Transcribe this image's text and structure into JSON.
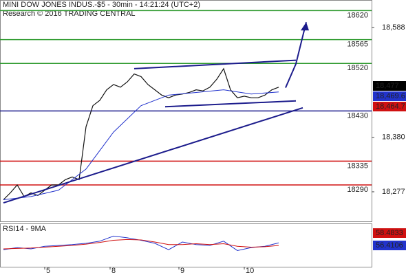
{
  "chart_data": {
    "type": "line",
    "title": "MINI DOW JONES INDUS.-$5 - 30min - 14:21:24 (UTC+2)",
    "subtitle": "Research © 2016 TRADING CENTRAL",
    "xlim": [
      0,
      108
    ],
    "xticks": [
      {
        "value": 13,
        "label": "5"
      },
      {
        "value": 32,
        "label": "8"
      },
      {
        "value": 52,
        "label": "9"
      },
      {
        "value": 71,
        "label": "10"
      }
    ],
    "ylim": [
      18221,
      18640
    ],
    "yticks": [
      {
        "value": 18277,
        "label": "18,277"
      },
      {
        "value": 18380,
        "label": "18,380"
      },
      {
        "value": 18588,
        "label": "18,588"
      }
    ],
    "series": [
      {
        "name": "price",
        "color": "#111111",
        "x": [
          1,
          3,
          5,
          7,
          9,
          11,
          13,
          15,
          17,
          19,
          21,
          23,
          25,
          27,
          29,
          31,
          33,
          35,
          37,
          39,
          41,
          43,
          45,
          47,
          49,
          51,
          53,
          55,
          57,
          59,
          61,
          63,
          65,
          67,
          69,
          71,
          73,
          75,
          77,
          79,
          81
        ],
        "values": [
          18262,
          18275,
          18290,
          18268,
          18275,
          18270,
          18280,
          18290,
          18290,
          18300,
          18305,
          18300,
          18400,
          18440,
          18450,
          18470,
          18480,
          18475,
          18485,
          18500,
          18495,
          18480,
          18470,
          18460,
          18455,
          18460,
          18462,
          18465,
          18470,
          18468,
          18475,
          18490,
          18510,
          18470,
          18455,
          18458,
          18455,
          18455,
          18460,
          18470,
          18475
        ]
      },
      {
        "name": "average",
        "color": "#2233cc",
        "x": [
          1,
          9,
          17,
          25,
          33,
          41,
          49,
          57,
          65,
          73,
          81
        ],
        "values": [
          18262,
          18268,
          18280,
          18320,
          18390,
          18440,
          18460,
          18465,
          18470,
          18462,
          18466
        ]
      }
    ],
    "levels": [
      {
        "value": 18620,
        "color": "#2e9a2e"
      },
      {
        "value": 18565,
        "color": "#2e9a2e"
      },
      {
        "value": 18520,
        "color": "#2e9a2e"
      },
      {
        "value": 18430,
        "color": "#1c1c8c"
      },
      {
        "value": 18335,
        "color": "#d01010"
      },
      {
        "value": 18290,
        "color": "#d01010"
      }
    ],
    "trendlines": [
      {
        "x": [
          1,
          88
        ],
        "values": [
          18256,
          18436
        ]
      },
      {
        "x": [
          39,
          86
        ],
        "values": [
          18510,
          18526
        ]
      },
      {
        "x": [
          48,
          86
        ],
        "values": [
          18438,
          18449
        ]
      },
      {
        "x": [
          83,
          86,
          89
        ],
        "values": [
          18474,
          18519,
          18598
        ]
      }
    ],
    "trend_color": "#1c1c8c",
    "price_labels": [
      {
        "value": 18477,
        "label": "18,477",
        "color": "#000000"
      },
      {
        "value": 18469.6,
        "label": "18,469.6",
        "color": "#2233cc"
      },
      {
        "value": 18464.7,
        "label": "18,464.7",
        "color": "#d01010"
      }
    ],
    "rsi": {
      "title": "RSI14 - 9MA",
      "ylim": [
        0,
        100
      ],
      "series": [
        {
          "name": "RSI14",
          "color": "#2233cc",
          "x": [
            1,
            5,
            9,
            13,
            17,
            21,
            25,
            29,
            33,
            37,
            41,
            45,
            49,
            53,
            57,
            61,
            65,
            69,
            73,
            77,
            81
          ],
          "values": [
            40,
            45,
            42,
            48,
            50,
            52,
            55,
            60,
            72,
            68,
            62,
            55,
            40,
            58,
            52,
            50,
            60,
            38,
            45,
            48,
            56
          ]
        },
        {
          "name": "9MA",
          "color": "#d01010",
          "x": [
            1,
            5,
            9,
            13,
            17,
            21,
            25,
            29,
            33,
            37,
            41,
            45,
            49,
            53,
            57,
            61,
            65,
            69,
            73,
            77,
            81
          ],
          "values": [
            42,
            43,
            44,
            46,
            48,
            50,
            53,
            57,
            62,
            64,
            63,
            58,
            52,
            52,
            54,
            52,
            54,
            48,
            46,
            47,
            50
          ]
        }
      ],
      "value_labels": [
        {
          "value": 58.4833,
          "label": "58.4833",
          "color": "#d01010"
        },
        {
          "value": 56.4106,
          "label": "56.4106",
          "color": "#2233cc"
        }
      ]
    }
  }
}
